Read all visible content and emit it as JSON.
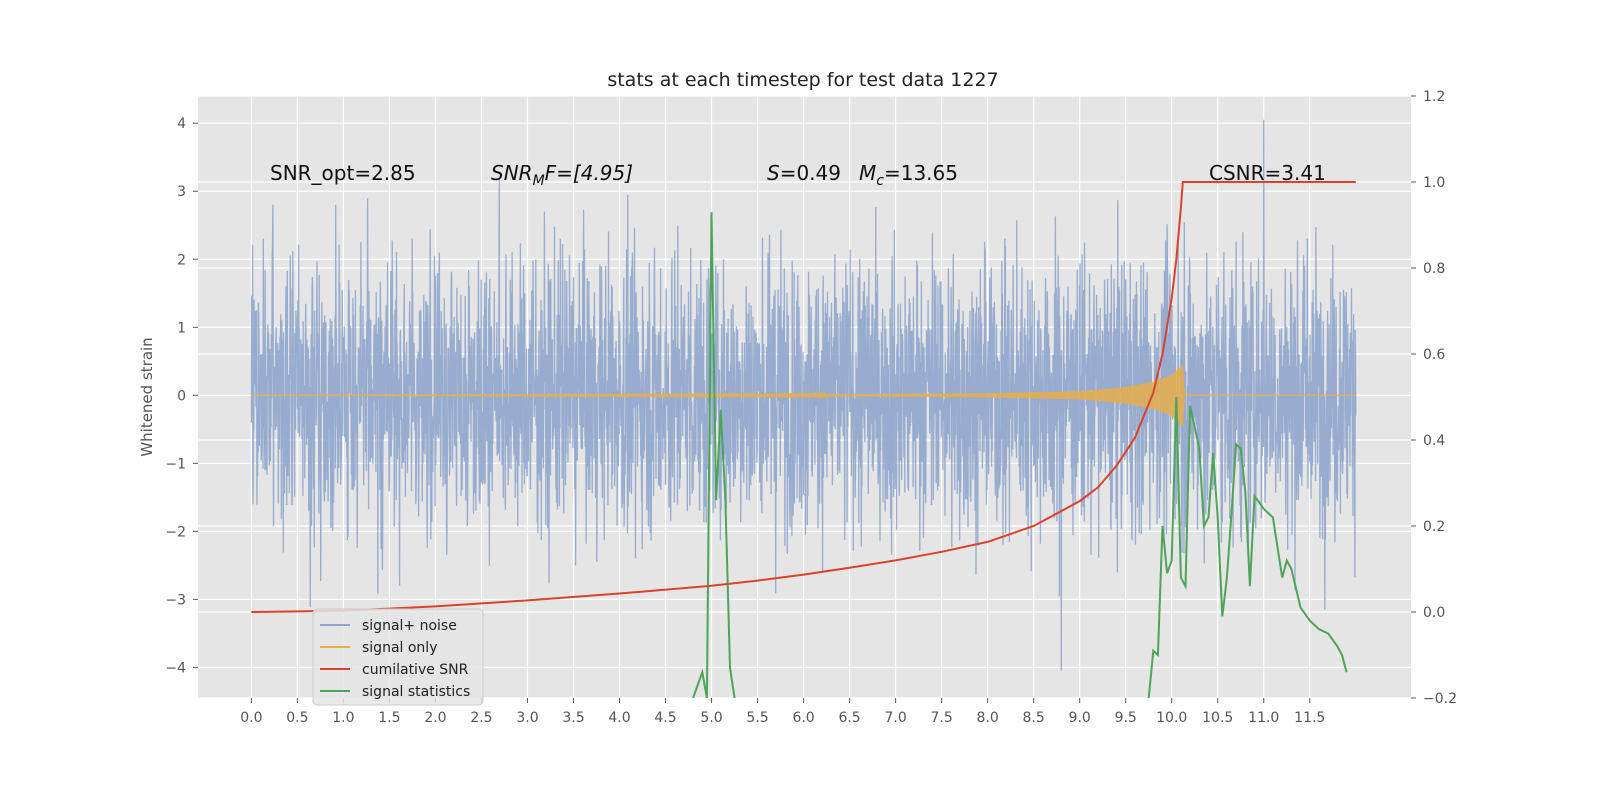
{
  "chart_data": {
    "type": "line",
    "title": "stats at each timestep for test data 1227",
    "ylabel": "Whitened strain",
    "ylabel_right": "",
    "xlabel": "",
    "xlim": [
      -0.58,
      12.6
    ],
    "ylim": [
      -4.45,
      4.4
    ],
    "ylim_right": [
      -0.2,
      1.2
    ],
    "x_ticks": [
      "0.0",
      "0.5",
      "1.0",
      "1.5",
      "2.0",
      "2.5",
      "3.0",
      "3.5",
      "4.0",
      "4.5",
      "5.0",
      "5.5",
      "6.0",
      "6.5",
      "7.0",
      "7.5",
      "8.0",
      "8.5",
      "9.0",
      "9.5",
      "10.0",
      "10.5",
      "11.0",
      "11.5"
    ],
    "y_ticks": [
      4,
      3,
      2,
      1,
      0,
      -1,
      -2,
      -3,
      -4
    ],
    "y_ticks_right": [
      "1.2",
      "1.0",
      "0.8",
      "0.6",
      "0.4",
      "0.2",
      "0.0",
      "−0.2"
    ],
    "grid": true,
    "legend_placement": "lower-left",
    "annotations": {
      "snr_opt": "SNR_opt=2.85",
      "snr_mf_main": "SNR",
      "snr_mf_sub": "M",
      "snr_mf_rest": "F=[4.95]",
      "s_main": "S",
      "s_value": "=0.49",
      "mc_main": "M",
      "mc_sub": "c",
      "mc_value": "=13.65",
      "csnr": "CSNR=3.41"
    },
    "series": [
      {
        "name": "signal+ noise",
        "color": "#8fa5cc",
        "axis": "left",
        "x_range": [
          0.0,
          12.0
        ],
        "typical_envelope": [
          -1.9,
          2.1
        ],
        "note_values": "dense noise; typical peaks ~±2.2, extremes +4.05 at x≈11.0, -4.05 at x≈8.8"
      },
      {
        "name": "signal only",
        "color": "#e5ae4a",
        "axis": "left",
        "x": [
          0.0,
          6.0,
          8.0,
          9.0,
          9.5,
          9.8,
          10.0,
          10.12,
          10.14,
          12.0
        ],
        "amplitude": [
          0.0,
          0.01,
          0.03,
          0.06,
          0.12,
          0.2,
          0.3,
          0.45,
          0.0,
          0.0
        ]
      },
      {
        "name": "cumilative SNR",
        "color": "#d9432b",
        "axis": "right",
        "x": [
          0.0,
          1.0,
          2.0,
          3.0,
          4.0,
          5.0,
          5.5,
          6.0,
          6.5,
          7.0,
          7.5,
          8.0,
          8.5,
          9.0,
          9.2,
          9.4,
          9.6,
          9.8,
          9.9,
          10.0,
          10.05,
          10.1,
          10.12,
          10.5,
          11.0,
          11.5,
          12.0
        ],
        "y": [
          0.0,
          0.003,
          0.013,
          0.027,
          0.043,
          0.061,
          0.073,
          0.087,
          0.103,
          0.12,
          0.14,
          0.163,
          0.2,
          0.258,
          0.29,
          0.34,
          0.405,
          0.51,
          0.6,
          0.73,
          0.82,
          0.94,
          1.0,
          1.0,
          1.0,
          1.0,
          1.0
        ]
      },
      {
        "name": "signal statistics",
        "color": "#4fa35a",
        "axis": "right",
        "x": [
          4.8,
          4.9,
          4.95,
          5.0,
          5.05,
          5.1,
          5.15,
          5.2,
          5.25,
          9.75,
          9.8,
          9.85,
          9.9,
          9.95,
          10.0,
          10.05,
          10.1,
          10.15,
          10.2,
          10.3,
          10.35,
          10.4,
          10.45,
          10.5,
          10.55,
          10.6,
          10.65,
          10.7,
          10.75,
          10.8,
          10.85,
          10.9,
          11.0,
          11.1,
          11.2,
          11.25,
          11.3,
          11.4,
          11.5,
          11.6,
          11.7,
          11.8,
          11.85,
          11.9
        ],
        "y": [
          -0.2,
          -0.14,
          -0.2,
          0.93,
          0.26,
          0.47,
          0.26,
          -0.13,
          -0.2,
          -0.2,
          -0.09,
          -0.1,
          0.2,
          0.09,
          0.12,
          0.5,
          0.08,
          0.06,
          0.48,
          0.38,
          0.2,
          0.22,
          0.37,
          0.22,
          -0.01,
          0.08,
          0.23,
          0.39,
          0.38,
          0.28,
          0.06,
          0.27,
          0.24,
          0.22,
          0.08,
          0.12,
          0.1,
          0.01,
          -0.02,
          -0.04,
          -0.05,
          -0.08,
          -0.1,
          -0.14
        ]
      }
    ]
  }
}
